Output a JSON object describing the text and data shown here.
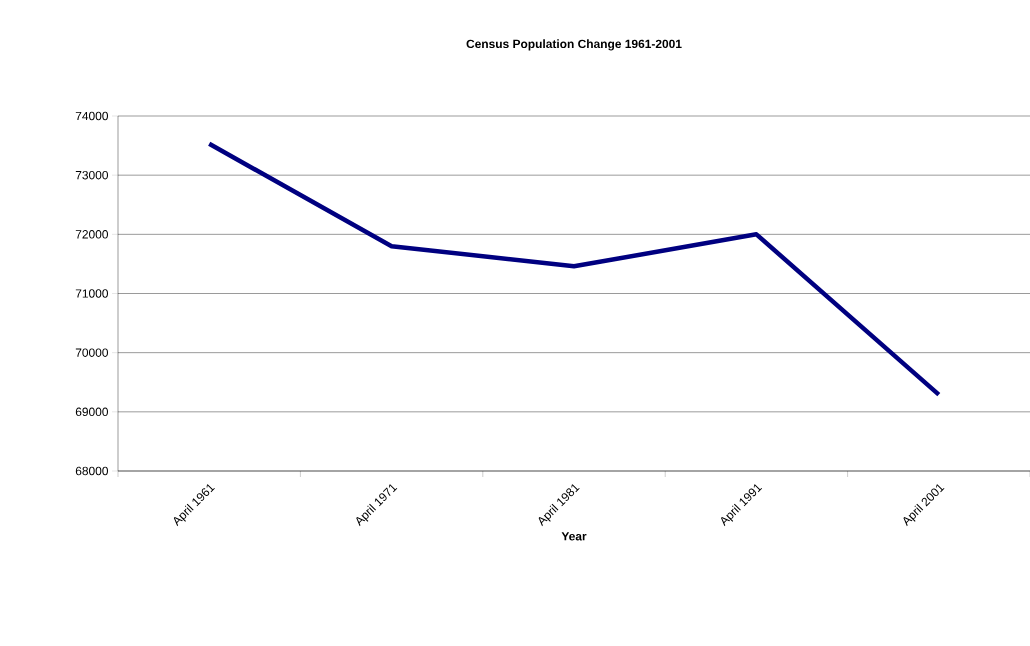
{
  "chart_data": {
    "type": "line",
    "title": "Census Population Change 1961-2001",
    "xlabel": "Year",
    "categories": [
      "April 1961",
      "April 1971",
      "April 1981",
      "April 1991",
      "April 2001"
    ],
    "series": [
      {
        "color": "#000080",
        "values": [
          73530,
          71800,
          71460,
          72000,
          69290
        ]
      }
    ],
    "ylim": [
      68000,
      74000
    ],
    "yticks": [
      68000,
      69000,
      70000,
      71000,
      72000,
      73000,
      74000
    ],
    "grid": "y",
    "marker": "none",
    "line_style": "solid"
  }
}
